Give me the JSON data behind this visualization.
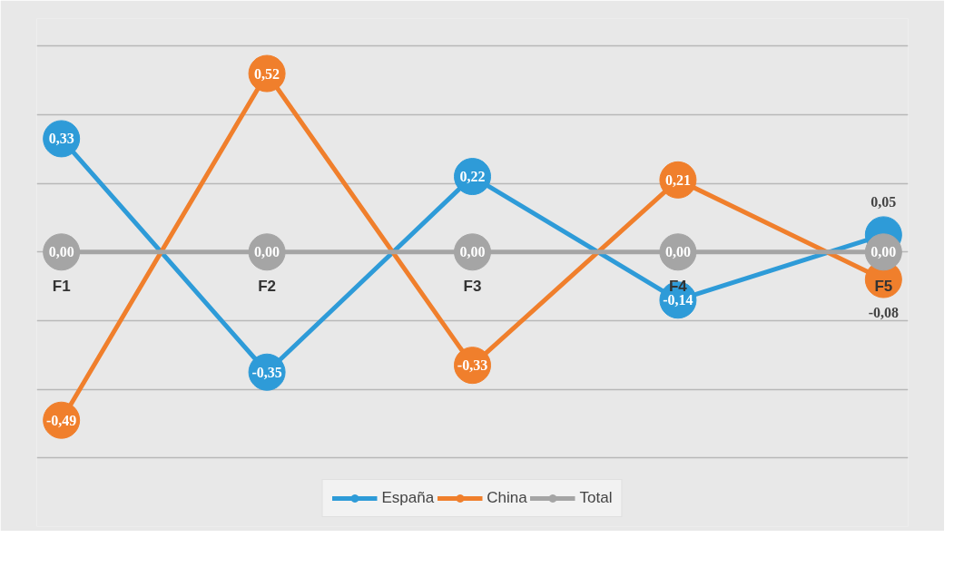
{
  "chart_data": {
    "type": "line",
    "categories": [
      "F1",
      "F2",
      "F3",
      "F4",
      "F5"
    ],
    "series": [
      {
        "name": "España",
        "color": "#2e9bd8",
        "values": [
          0.33,
          -0.35,
          0.22,
          -0.14,
          0.05
        ],
        "value_labels": [
          "0,33",
          "-0,35",
          "0,22",
          "-0,14",
          "0,05"
        ]
      },
      {
        "name": "China",
        "color": "#f07f2c",
        "values": [
          -0.49,
          0.52,
          -0.33,
          0.21,
          -0.08
        ],
        "value_labels": [
          "-0,49",
          "0,52",
          "-0,33",
          "0,21",
          "-0,08"
        ]
      },
      {
        "name": "Total",
        "color": "#a5a5a5",
        "values": [
          0,
          0,
          0,
          0,
          0
        ],
        "value_labels": [
          "0,00",
          "0,00",
          "0,00",
          "0,00",
          "0,00"
        ]
      }
    ],
    "ylim": [
      -0.8,
      0.68
    ],
    "yticks": [
      {
        "value": -0.6,
        "label": null
      },
      {
        "value": -0.4,
        "label": null
      },
      {
        "value": -0.2,
        "label": null
      },
      {
        "value": 0,
        "label": null
      },
      {
        "value": 0.2,
        "label": null
      },
      {
        "value": 0.4,
        "label": null
      },
      {
        "value": 0.6,
        "label": null
      }
    ],
    "tick_labels": "x",
    "grid": "y",
    "legend": "bottom",
    "marker": "circle",
    "line_style": "solid"
  }
}
